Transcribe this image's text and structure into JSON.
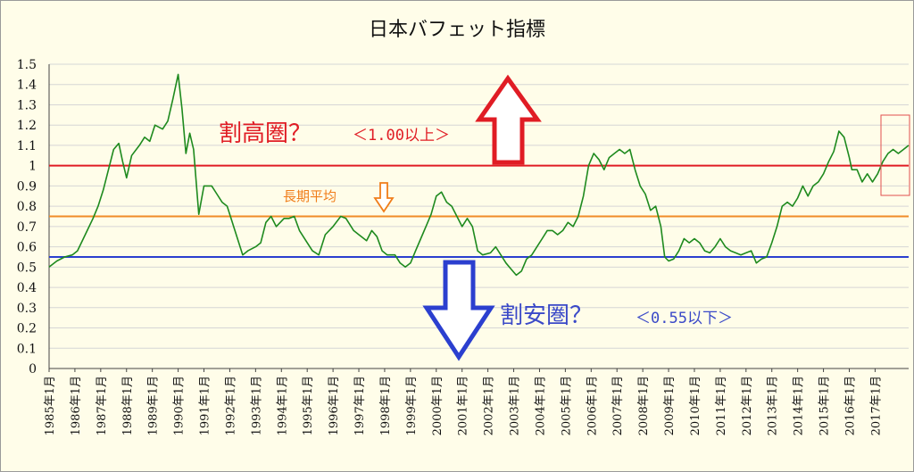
{
  "chart_data": {
    "type": "line",
    "title": "日本バフェット指標",
    "ylim": [
      0,
      1.5
    ],
    "y_ticks": [
      "0",
      "0.1",
      "0.2",
      "0.3",
      "0.4",
      "0.5",
      "0.6",
      "0.7",
      "0.8",
      "0.9",
      "1",
      "1.1",
      "1.2",
      "1.3",
      "1.4",
      "1.5"
    ],
    "x_tick_labels": [
      "1985年1月",
      "1986年1月",
      "1987年1月",
      "1988年1月",
      "1989年1月",
      "1990年1月",
      "1991年1月",
      "1992年1月",
      "1993年1月",
      "1994年1月",
      "1995年1月",
      "1996年1月",
      "1997年1月",
      "1998年1月",
      "1999年1月",
      "2000年1月",
      "2001年1月",
      "2002年1月",
      "2003年1月",
      "2004年1月",
      "2005年1月",
      "2006年1月",
      "2007年1月",
      "2008年1月",
      "2009年1月",
      "2010年1月",
      "2011年1月",
      "2012年1月",
      "2013年1月",
      "2014年1月",
      "2015年1月",
      "2016年1月",
      "2017年1月"
    ],
    "x_range": [
      1985.0,
      2018.3
    ],
    "grid": true,
    "series": [
      {
        "color": "#1e8a1e",
        "points": [
          [
            1985.0,
            0.5
          ],
          [
            1985.3,
            0.53
          ],
          [
            1985.6,
            0.55
          ],
          [
            1985.9,
            0.56
          ],
          [
            1986.1,
            0.58
          ],
          [
            1986.4,
            0.66
          ],
          [
            1986.7,
            0.74
          ],
          [
            1986.9,
            0.8
          ],
          [
            1987.1,
            0.88
          ],
          [
            1987.3,
            0.98
          ],
          [
            1987.5,
            1.08
          ],
          [
            1987.7,
            1.11
          ],
          [
            1987.85,
            1.02
          ],
          [
            1988.0,
            0.94
          ],
          [
            1988.2,
            1.05
          ],
          [
            1988.5,
            1.1
          ],
          [
            1988.7,
            1.14
          ],
          [
            1988.9,
            1.12
          ],
          [
            1989.1,
            1.2
          ],
          [
            1989.4,
            1.18
          ],
          [
            1989.6,
            1.22
          ],
          [
            1989.8,
            1.33
          ],
          [
            1990.0,
            1.45
          ],
          [
            1990.15,
            1.28
          ],
          [
            1990.3,
            1.06
          ],
          [
            1990.45,
            1.16
          ],
          [
            1990.6,
            1.08
          ],
          [
            1990.8,
            0.76
          ],
          [
            1991.0,
            0.9
          ],
          [
            1991.3,
            0.9
          ],
          [
            1991.5,
            0.86
          ],
          [
            1991.7,
            0.82
          ],
          [
            1991.9,
            0.8
          ],
          [
            1992.1,
            0.72
          ],
          [
            1992.3,
            0.64
          ],
          [
            1992.5,
            0.56
          ],
          [
            1992.7,
            0.58
          ],
          [
            1993.0,
            0.6
          ],
          [
            1993.2,
            0.62
          ],
          [
            1993.4,
            0.72
          ],
          [
            1993.6,
            0.75
          ],
          [
            1993.8,
            0.7
          ],
          [
            1994.1,
            0.74
          ],
          [
            1994.3,
            0.74
          ],
          [
            1994.5,
            0.75
          ],
          [
            1994.7,
            0.68
          ],
          [
            1995.0,
            0.62
          ],
          [
            1995.2,
            0.58
          ],
          [
            1995.45,
            0.56
          ],
          [
            1995.7,
            0.66
          ],
          [
            1996.0,
            0.7
          ],
          [
            1996.3,
            0.75
          ],
          [
            1996.5,
            0.74
          ],
          [
            1996.8,
            0.68
          ],
          [
            1997.0,
            0.66
          ],
          [
            1997.3,
            0.63
          ],
          [
            1997.5,
            0.68
          ],
          [
            1997.7,
            0.65
          ],
          [
            1997.9,
            0.58
          ],
          [
            1998.1,
            0.56
          ],
          [
            1998.4,
            0.56
          ],
          [
            1998.6,
            0.52
          ],
          [
            1998.8,
            0.5
          ],
          [
            1999.0,
            0.52
          ],
          [
            1999.2,
            0.58
          ],
          [
            1999.4,
            0.64
          ],
          [
            1999.6,
            0.7
          ],
          [
            1999.8,
            0.76
          ],
          [
            2000.0,
            0.85
          ],
          [
            2000.2,
            0.87
          ],
          [
            2000.4,
            0.82
          ],
          [
            2000.6,
            0.8
          ],
          [
            2000.8,
            0.75
          ],
          [
            2001.0,
            0.7
          ],
          [
            2001.2,
            0.74
          ],
          [
            2001.4,
            0.7
          ],
          [
            2001.6,
            0.58
          ],
          [
            2001.8,
            0.56
          ],
          [
            2002.1,
            0.57
          ],
          [
            2002.3,
            0.6
          ],
          [
            2002.5,
            0.56
          ],
          [
            2002.7,
            0.52
          ],
          [
            2002.9,
            0.49
          ],
          [
            2003.1,
            0.46
          ],
          [
            2003.3,
            0.48
          ],
          [
            2003.5,
            0.54
          ],
          [
            2003.7,
            0.56
          ],
          [
            2003.9,
            0.6
          ],
          [
            2004.1,
            0.64
          ],
          [
            2004.3,
            0.68
          ],
          [
            2004.5,
            0.68
          ],
          [
            2004.7,
            0.66
          ],
          [
            2004.9,
            0.68
          ],
          [
            2005.1,
            0.72
          ],
          [
            2005.3,
            0.7
          ],
          [
            2005.5,
            0.75
          ],
          [
            2005.7,
            0.85
          ],
          [
            2005.9,
            1.0
          ],
          [
            2006.1,
            1.06
          ],
          [
            2006.3,
            1.03
          ],
          [
            2006.5,
            0.98
          ],
          [
            2006.7,
            1.04
          ],
          [
            2006.9,
            1.06
          ],
          [
            2007.1,
            1.08
          ],
          [
            2007.3,
            1.06
          ],
          [
            2007.5,
            1.08
          ],
          [
            2007.7,
            0.98
          ],
          [
            2007.9,
            0.9
          ],
          [
            2008.1,
            0.86
          ],
          [
            2008.3,
            0.78
          ],
          [
            2008.5,
            0.8
          ],
          [
            2008.7,
            0.7
          ],
          [
            2008.85,
            0.55
          ],
          [
            2009.0,
            0.53
          ],
          [
            2009.2,
            0.54
          ],
          [
            2009.4,
            0.58
          ],
          [
            2009.6,
            0.64
          ],
          [
            2009.8,
            0.62
          ],
          [
            2010.0,
            0.64
          ],
          [
            2010.2,
            0.62
          ],
          [
            2010.4,
            0.58
          ],
          [
            2010.6,
            0.57
          ],
          [
            2010.8,
            0.6
          ],
          [
            2011.0,
            0.64
          ],
          [
            2011.2,
            0.6
          ],
          [
            2011.4,
            0.58
          ],
          [
            2011.6,
            0.57
          ],
          [
            2011.8,
            0.56
          ],
          [
            2012.0,
            0.57
          ],
          [
            2012.2,
            0.58
          ],
          [
            2012.4,
            0.52
          ],
          [
            2012.6,
            0.54
          ],
          [
            2012.8,
            0.55
          ],
          [
            2013.0,
            0.62
          ],
          [
            2013.2,
            0.7
          ],
          [
            2013.4,
            0.8
          ],
          [
            2013.6,
            0.82
          ],
          [
            2013.8,
            0.8
          ],
          [
            2014.0,
            0.84
          ],
          [
            2014.2,
            0.9
          ],
          [
            2014.4,
            0.85
          ],
          [
            2014.6,
            0.9
          ],
          [
            2014.8,
            0.92
          ],
          [
            2015.0,
            0.96
          ],
          [
            2015.2,
            1.02
          ],
          [
            2015.4,
            1.07
          ],
          [
            2015.6,
            1.17
          ],
          [
            2015.8,
            1.14
          ],
          [
            2016.0,
            1.04
          ],
          [
            2016.1,
            0.98
          ],
          [
            2016.3,
            0.98
          ],
          [
            2016.5,
            0.92
          ],
          [
            2016.7,
            0.96
          ],
          [
            2016.9,
            0.92
          ],
          [
            2017.1,
            0.96
          ],
          [
            2017.3,
            1.02
          ],
          [
            2017.5,
            1.06
          ],
          [
            2017.7,
            1.08
          ],
          [
            2017.9,
            1.06
          ],
          [
            2018.1,
            1.08
          ],
          [
            2018.3,
            1.1
          ]
        ]
      }
    ],
    "reference_lines": [
      {
        "value": 1.0,
        "color": "#e01c24"
      },
      {
        "value": 0.75,
        "color": "#f08c28"
      },
      {
        "value": 0.55,
        "color": "#2b3fcf"
      }
    ],
    "annotations": {
      "high_label": "割高圏？",
      "high_sub": "＜1.00以上＞",
      "avg_label": "長期平均",
      "low_label": "割安圏？",
      "low_sub": "＜0.55以下＞"
    }
  }
}
